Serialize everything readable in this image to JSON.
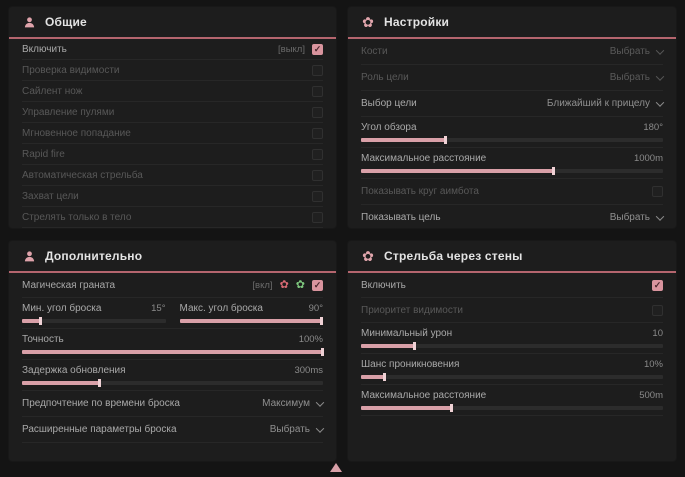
{
  "colors": {
    "accent": "#d9a0a8",
    "header_underline": "#b4656e",
    "panel_bg": "#1d1d1d",
    "page_bg": "#141414",
    "checkbox_checked": "#d9949e"
  },
  "icons": {
    "flower_glyph": "✿",
    "check_glyph": "✓"
  },
  "panels": {
    "general": {
      "title": "Общие",
      "icon": "person-target-icon",
      "rows": [
        {
          "label": "Включить",
          "tag": "[выкл]",
          "control": "checkbox",
          "checked": true
        },
        {
          "label": "Проверка видимости",
          "control": "checkbox",
          "checked": false,
          "disabled": true
        },
        {
          "label": "Сайлент нож",
          "control": "checkbox",
          "checked": false,
          "disabled": true
        },
        {
          "label": "Управление пулями",
          "control": "checkbox",
          "checked": false,
          "disabled": true
        },
        {
          "label": "Мгновенное попадание",
          "control": "checkbox",
          "checked": false,
          "disabled": true
        },
        {
          "label": "Rapid fire",
          "control": "checkbox",
          "checked": false,
          "disabled": true
        },
        {
          "label": "Автоматическая стрельба",
          "control": "checkbox",
          "checked": false,
          "disabled": true
        },
        {
          "label": "Захват цели",
          "control": "checkbox",
          "checked": false,
          "disabled": true
        },
        {
          "label": "Стрелять только в тело",
          "control": "checkbox",
          "checked": false,
          "disabled": true
        }
      ]
    },
    "settings": {
      "title": "Настройки",
      "icon": "gear-flower-icon",
      "rows": {
        "bones": {
          "label": "Кости",
          "value": "Выбрать",
          "control": "dropdown",
          "disabled": true
        },
        "target_role": {
          "label": "Роль цели",
          "value": "Выбрать",
          "control": "dropdown",
          "disabled": true
        },
        "target_select": {
          "label": "Выбор цели",
          "value": "Ближайший к прицелу",
          "control": "dropdown"
        },
        "fov": {
          "label": "Угол обзора",
          "value": "180°",
          "control": "slider",
          "fill_pct": 28
        },
        "max_distance": {
          "label": "Максимальное расстояние",
          "value": "1000m",
          "control": "slider",
          "fill_pct": 64
        },
        "show_aimbot_circle": {
          "label": "Показывать круг аимбота",
          "control": "checkbox",
          "checked": false,
          "disabled": true
        },
        "show_target": {
          "label": "Показывать цель",
          "value": "Выбрать",
          "control": "dropdown"
        }
      }
    },
    "additional": {
      "title": "Дополнительно",
      "icon": "person-target-icon",
      "rows": {
        "magic_grenade": {
          "label": "Магическая граната",
          "tag": "[вкл]",
          "icons": [
            "red-flower-icon",
            "green-flower-icon"
          ],
          "control": "checkbox",
          "checked": true
        },
        "min_throw_angle": {
          "label": "Мин. угол броска",
          "value": "15°",
          "control": "slider",
          "fill_pct": 13
        },
        "max_throw_angle": {
          "label": "Макс. угол броска",
          "value": "90°",
          "control": "slider",
          "fill_pct": 99
        },
        "accuracy": {
          "label": "Точность",
          "value": "100%",
          "control": "slider",
          "fill_pct": 100
        },
        "update_delay": {
          "label": "Задержка обновления",
          "value": "300ms",
          "control": "slider",
          "fill_pct": 26
        },
        "throw_time_pref": {
          "label": "Предпочтение по времени броска",
          "value": "Максимум",
          "control": "dropdown"
        },
        "advanced_throw": {
          "label": "Расширенные параметры броска",
          "value": "Выбрать",
          "control": "dropdown"
        }
      }
    },
    "walls": {
      "title": "Стрельба через стены",
      "icon": "gear-flower-icon",
      "rows": {
        "enable": {
          "label": "Включить",
          "control": "checkbox",
          "checked": true
        },
        "visibility_priority": {
          "label": "Приоритет видимости",
          "control": "checkbox",
          "checked": false,
          "disabled": true
        },
        "min_damage": {
          "label": "Минимальный урон",
          "value": "10",
          "control": "slider",
          "fill_pct": 18
        },
        "penetration_chance": {
          "label": "Шанс проникновения",
          "value": "10%",
          "control": "slider",
          "fill_pct": 8
        },
        "max_distance": {
          "label": "Максимальное расстояние",
          "value": "500m",
          "control": "slider",
          "fill_pct": 30
        }
      }
    }
  }
}
